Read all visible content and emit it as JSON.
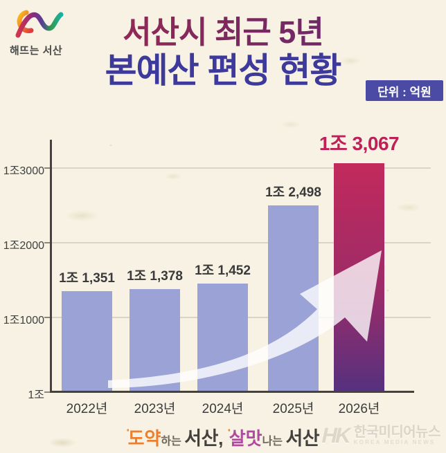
{
  "header": {
    "logo_text": "해뜨는 서산",
    "title_line1": "서산시 최근 5년",
    "title_line2": "본예산 편성 현황",
    "unit_badge": "단위 : 억원"
  },
  "chart_data": {
    "type": "bar",
    "title": "서산시 최근 5년 본예산 편성 현황",
    "unit": "억원",
    "categories": [
      "2022년",
      "2023년",
      "2024년",
      "2025년",
      "2026년"
    ],
    "values": [
      11351,
      11378,
      11452,
      12498,
      13067
    ],
    "bar_labels": [
      "1조 1,351",
      "1조 1,378",
      "1조 1,452",
      "1조 2,498",
      "1조 3,067"
    ],
    "y_ticks": [
      {
        "label": "1조3000",
        "value": 13000
      },
      {
        "label": "1조2000",
        "value": 12000
      },
      {
        "label": "1조1000",
        "value": 11000
      },
      {
        "label": "1조",
        "value": 10000
      }
    ],
    "ylim": [
      10000,
      13400
    ],
    "grid": true,
    "legend": "none",
    "highlight_index": 4,
    "annotations": [
      "upward-growth-swoosh-arrow"
    ],
    "colors": {
      "bar": "#9AA2D6",
      "highlight_top": "#C22A5C",
      "highlight_bottom": "#55317F",
      "value_label": "#3A3A3A",
      "highlight_label": "#BE2058",
      "axis": "#45423D",
      "grid": "#D9D4C5",
      "background": "#F7F2E4"
    }
  },
  "footer": {
    "slogan": {
      "spark1": "''",
      "part1_accent": "도약",
      "part1_small": "하는 ",
      "part1_main": "서산",
      "comma": ", ",
      "spark2": "''",
      "part2_accent": "살맛",
      "part2_small": "나는 ",
      "part2_main": "서산"
    },
    "watermark": {
      "monogram": "HK",
      "name_ko": "한국미디어뉴스",
      "name_en": "KOREA MEDIA NEWS"
    }
  }
}
